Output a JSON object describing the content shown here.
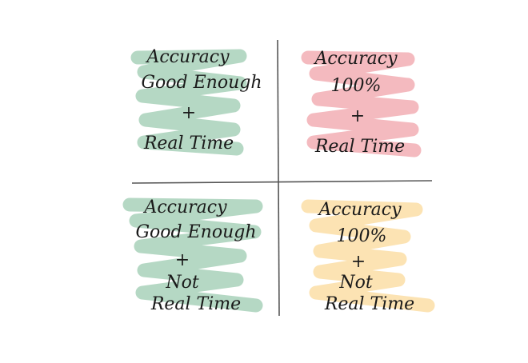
{
  "quadrants": [
    {
      "lines": [
        "Accuracy",
        "Good Enough",
        "+",
        "Real Time"
      ]
    },
    {
      "lines": [
        "Accuracy",
        "100%",
        "+",
        "Real Time"
      ]
    },
    {
      "lines": [
        "Accuracy",
        "Good Enough",
        "+",
        "Not",
        "Real Time"
      ]
    },
    {
      "lines": [
        "Accuracy",
        "100%",
        "+",
        "Not",
        "Real Time"
      ]
    }
  ]
}
